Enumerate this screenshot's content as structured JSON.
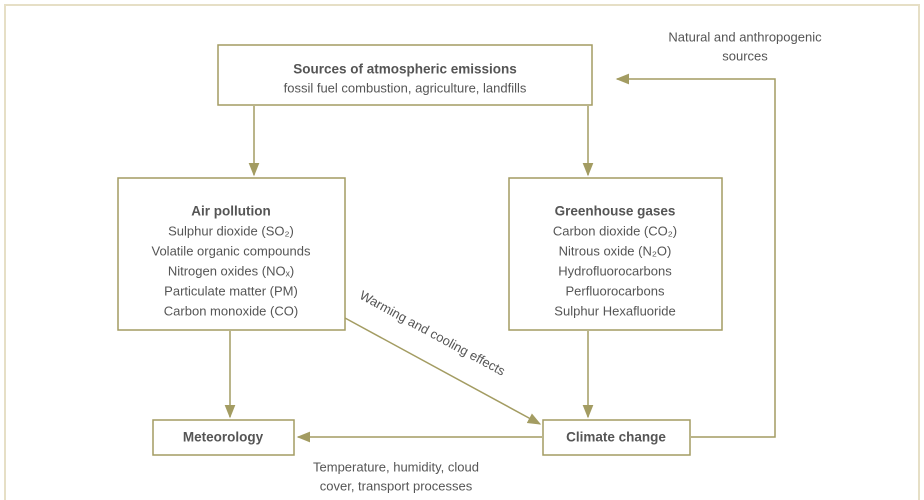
{
  "nodes": [
    {
      "title": "Sources of atmospheric emissions",
      "lines": [
        "fossil fuel combustion, agriculture, landfills"
      ]
    },
    {
      "title": "Air pollution",
      "lines": [
        "Sulphur dioxide (SO₂)",
        "Volatile organic compounds",
        "Nitrogen oxides (NOₓ)",
        "Particulate matter (PM)",
        "Carbon monoxide (CO)"
      ]
    },
    {
      "title": "Greenhouse gases",
      "lines": [
        "Carbon dioxide (CO₂)",
        "Nitrous oxide (N₂O)",
        "Hydrofluorocarbons",
        "Perfluorocarbons",
        "Sulphur Hexafluoride"
      ]
    },
    {
      "title": "Meteorology",
      "lines": []
    },
    {
      "title": "Climate change",
      "lines": []
    }
  ],
  "edge_labels": [
    {
      "lines": [
        "Natural and anthropogenic",
        "sources"
      ]
    },
    {
      "lines": [
        "Warming and cooling effects"
      ]
    },
    {
      "lines": [
        "Temperature, humidity, cloud",
        "cover, transport processes"
      ]
    }
  ]
}
